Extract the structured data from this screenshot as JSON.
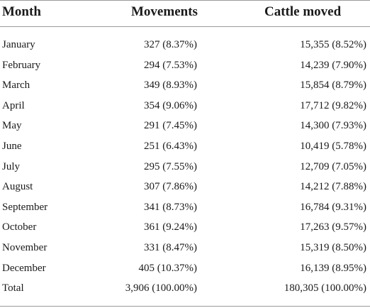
{
  "table": {
    "headers": {
      "month": "Month",
      "movements": "Movements",
      "cattle": "Cattle moved"
    },
    "rows": [
      {
        "month": "January",
        "movements": "327 (8.37%)",
        "cattle": "15,355 (8.52%)"
      },
      {
        "month": "February",
        "movements": "294 (7.53%)",
        "cattle": "14,239 (7.90%)"
      },
      {
        "month": "March",
        "movements": "349 (8.93%)",
        "cattle": "15,854 (8.79%)"
      },
      {
        "month": "April",
        "movements": "354 (9.06%)",
        "cattle": "17,712 (9.82%)"
      },
      {
        "month": "May",
        "movements": "291 (7.45%)",
        "cattle": "14,300 (7.93%)"
      },
      {
        "month": "June",
        "movements": "251 (6.43%)",
        "cattle": "10,419 (5.78%)"
      },
      {
        "month": "July",
        "movements": "295 (7.55%)",
        "cattle": "12,709 (7.05%)"
      },
      {
        "month": "August",
        "movements": "307 (7.86%)",
        "cattle": "14,212 (7.88%)"
      },
      {
        "month": "September",
        "movements": "341 (8.73%)",
        "cattle": "16,784 (9.31%)"
      },
      {
        "month": "October",
        "movements": "361 (9.24%)",
        "cattle": "17,263 (9.57%)"
      },
      {
        "month": "November",
        "movements": "331 (8.47%)",
        "cattle": "15,319 (8.50%)"
      },
      {
        "month": "December",
        "movements": "405 (10.37%)",
        "cattle": "16,139 (8.95%)"
      },
      {
        "month": "Total",
        "movements": "3,906 (100.00%)",
        "cattle": "180,305 (100.00%)"
      }
    ]
  }
}
